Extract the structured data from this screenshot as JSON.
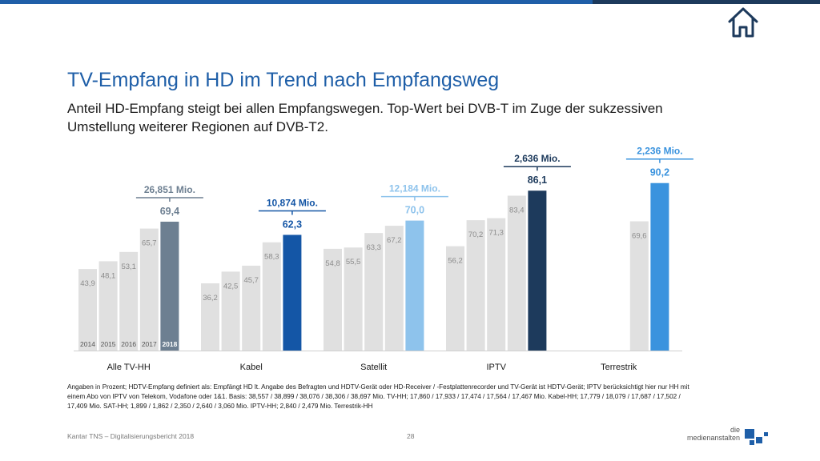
{
  "title": "TV-Empfang in HD im Trend nach Empfangsweg",
  "subtitle": "Anteil HD-Empfang steigt bei allen Empfangswegen. Top-Wert bei DVB-T im Zuge der sukzessiven Umstellung weiterer Regionen auf DVB-T2.",
  "footnote": "Angaben in Prozent; HDTV-Empfang definiert als: Empfängt HD lt. Angabe des Befragten und HDTV-Gerät oder HD-Receiver / -Festplattenrecorder und TV-Gerät ist HDTV-Gerät; IPTV berücksichtigt hier nur HH mit einem Abo von IPTV von Telekom, Vodafone oder 1&1. Basis: 38,557 / 38,899 / 38,076 / 38,306 / 38,697 Mio. TV-HH; 17,860 / 17,933 / 17,474 / 17,564 / 17,467 Mio. Kabel-HH; 17,779 / 18,079 / 17,687 / 17,502 / 17,409 Mio. SAT-HH; 1,899 / 1,862 / 2,350 / 2,640 / 3,060 Mio. IPTV-HH; 2,840 / 2,479 Mio. Terrestrik-HH",
  "footer": "Kantar TNS – Digitalisierungsbericht 2018",
  "page_number": "28",
  "logo": {
    "line1": "die",
    "line2": "medienanstalten"
  },
  "icons": {
    "home": "home-icon"
  },
  "colors": {
    "title": "#1f5fa8",
    "past_years": "#e0e0e0",
    "past_label": "#8c8c8c"
  },
  "chart_data": {
    "type": "bar",
    "categories": [
      "Alle TV-HH",
      "Kabel",
      "Satellit",
      "IPTV",
      "Terrestrik"
    ],
    "years": [
      "2014",
      "2015",
      "2016",
      "2017",
      "2018"
    ],
    "ylim": [
      0,
      100
    ],
    "groups": [
      {
        "category": "Alle TV-HH",
        "values": [
          43.9,
          48.1,
          53.1,
          65.7,
          69.4
        ],
        "labels": [
          "43,9",
          "48,1",
          "53,1",
          "65,7",
          "69,4"
        ],
        "highlight_color": "#6d7f91",
        "label_color": "#6d7f91",
        "hh": "26,851 Mio."
      },
      {
        "category": "Kabel",
        "values": [
          36.2,
          42.5,
          45.7,
          58.3,
          62.3
        ],
        "labels": [
          "36,2",
          "42,5",
          "45,7",
          "58,3",
          "62,3"
        ],
        "highlight_color": "#1456a6",
        "label_color": "#1456a6",
        "hh": "10,874 Mio."
      },
      {
        "category": "Satellit",
        "values": [
          54.8,
          55.5,
          63.3,
          67.2,
          70.0
        ],
        "labels": [
          "54,8",
          "55,5",
          "63,3",
          "67,2",
          "70,0"
        ],
        "highlight_color": "#8ec3ec",
        "label_color": "#8ec3ec",
        "hh": "12,184 Mio."
      },
      {
        "category": "IPTV",
        "values": [
          56.2,
          70.2,
          71.3,
          83.4,
          86.1
        ],
        "labels": [
          "56,2",
          "70,2",
          "71,3",
          "83,4",
          "86,1"
        ],
        "highlight_color": "#1d3a5c",
        "label_color": "#1d3a5c",
        "hh": "2,636 Mio."
      },
      {
        "category": "Terrestrik",
        "values": [
          null,
          null,
          null,
          69.6,
          90.2
        ],
        "labels": [
          "",
          "",
          "",
          "69,6",
          "90,2"
        ],
        "highlight_color": "#3a93de",
        "label_color": "#3a93de",
        "hh": "2,236 Mio."
      }
    ]
  }
}
